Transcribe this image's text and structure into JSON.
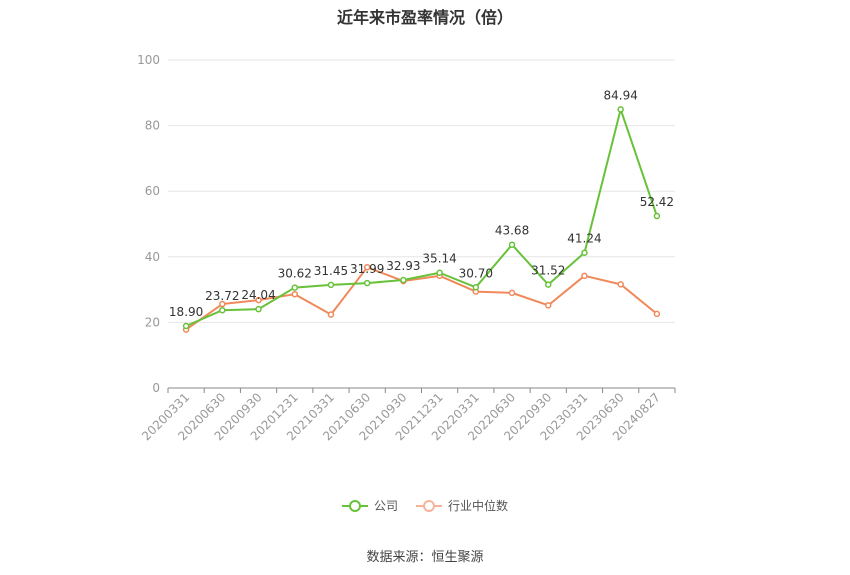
{
  "chart_data": {
    "type": "line",
    "title": "近年来市盈率情况（倍）",
    "categories": [
      "20200331",
      "20200630",
      "20200930",
      "20201231",
      "20210331",
      "20210630",
      "20210930",
      "20211231",
      "20220331",
      "20220630",
      "20220930",
      "20230331",
      "20230630",
      "20240827"
    ],
    "series": [
      {
        "name": "公司",
        "color": "#67c23a",
        "values": [
          18.9,
          23.72,
          24.04,
          30.62,
          31.45,
          31.99,
          32.93,
          35.14,
          30.7,
          43.68,
          31.52,
          41.24,
          84.94,
          52.42
        ],
        "labels": [
          "18.90",
          "23.72",
          "24.04",
          "30.62",
          "31.45",
          "31.99",
          "32.93",
          "35.14",
          "30.70",
          "43.68",
          "31.52",
          "41.24",
          "84.94",
          "52.42"
        ]
      },
      {
        "name": "行业中位数",
        "color": "#f0895a",
        "values": [
          17.8,
          25.6,
          26.8,
          28.6,
          22.4,
          36.8,
          32.6,
          34.2,
          29.4,
          29.0,
          25.2,
          34.2,
          31.6,
          22.6
        ]
      }
    ],
    "yticks": [
      0,
      20,
      40,
      60,
      80,
      100
    ],
    "ylim": [
      0,
      100
    ],
    "grid": true,
    "legend_position": "bottom"
  },
  "source_text": "数据来源：恒生聚源"
}
